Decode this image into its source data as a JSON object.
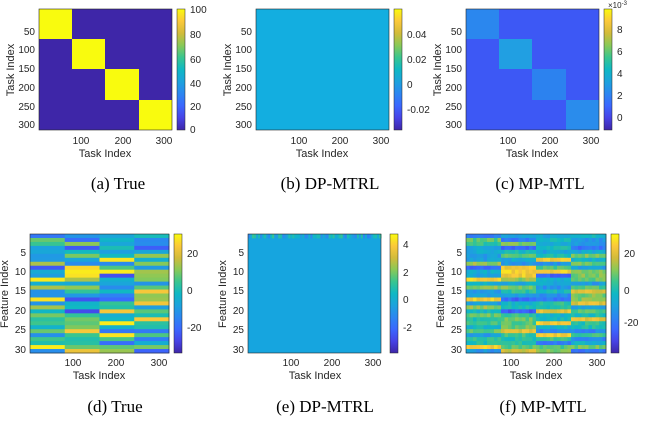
{
  "chart_data": [
    {
      "type": "heatmap",
      "caption": "(a) True",
      "ylabel": "Task Index",
      "xlabel": "Task Index",
      "yticks": [
        "50",
        "100",
        "150",
        "200",
        "250",
        "300"
      ],
      "xticks": [
        "100",
        "200",
        "300"
      ],
      "colorbar_ticks": [
        "100",
        "80",
        "60",
        "40",
        "20",
        "0"
      ],
      "value_range": [
        0,
        100
      ],
      "description_values": {
        "diagonal_blocks": 100,
        "off_diagonal": 0,
        "block_size": 80,
        "n": 320
      }
    },
    {
      "type": "heatmap",
      "caption": "(b) DP-MTRL",
      "ylabel": "Task Index",
      "xlabel": "Task Index",
      "yticks": [
        "50",
        "100",
        "150",
        "200",
        "250",
        "300"
      ],
      "xticks": [
        "100",
        "200",
        "300"
      ],
      "colorbar_ticks": [
        "0.04",
        "0.02",
        "0",
        "-0.02"
      ],
      "value_range": [
        -0.035,
        0.055
      ],
      "description_values": {
        "uniform_value": 0.0
      }
    },
    {
      "type": "heatmap",
      "caption": "(c) MP-MTL",
      "ylabel": "Task Index",
      "xlabel": "Task Index",
      "yticks": [
        "50",
        "100",
        "150",
        "200",
        "250",
        "300"
      ],
      "xticks": [
        "100",
        "200",
        "300"
      ],
      "colorbar_ticks": [
        "8",
        "6",
        "4",
        "2",
        "0"
      ],
      "colorbar_multiplier": "×10",
      "colorbar_exponent": "-3",
      "value_range": [
        -1.5,
        9.5
      ],
      "description_values": {
        "block_diag": [
          1.2,
          2.0,
          1.0,
          1.5
        ],
        "off_diagonal": -0.8
      }
    },
    {
      "type": "heatmap",
      "caption": "(d) True",
      "ylabel": "Feature Index",
      "xlabel": "Task Index",
      "yticks": [
        "5",
        "10",
        "15",
        "20",
        "25",
        "30"
      ],
      "xticks": [
        "100",
        "200",
        "300"
      ],
      "colorbar_ticks": [
        "20",
        "0",
        "-20"
      ],
      "value_range": [
        -32,
        32
      ]
    },
    {
      "type": "heatmap",
      "caption": "(e) DP-MTRL",
      "ylabel": "Feature Index",
      "xlabel": "Task Index",
      "yticks": [
        "5",
        "10",
        "15",
        "20",
        "25",
        "30"
      ],
      "xticks": [
        "100",
        "200",
        "300"
      ],
      "colorbar_ticks": [
        "4",
        "2",
        "0",
        "-2"
      ],
      "value_range": [
        -3.5,
        5.2
      ]
    },
    {
      "type": "heatmap",
      "caption": "(f) MP-MTL",
      "ylabel": "Feature Index",
      "xlabel": "Task Index",
      "yticks": [
        "5",
        "10",
        "15",
        "20",
        "25",
        "30"
      ],
      "xticks": [
        "100",
        "200",
        "300"
      ],
      "colorbar_ticks": [
        "20",
        "0",
        "-20"
      ],
      "value_range": [
        -32,
        32
      ]
    }
  ]
}
